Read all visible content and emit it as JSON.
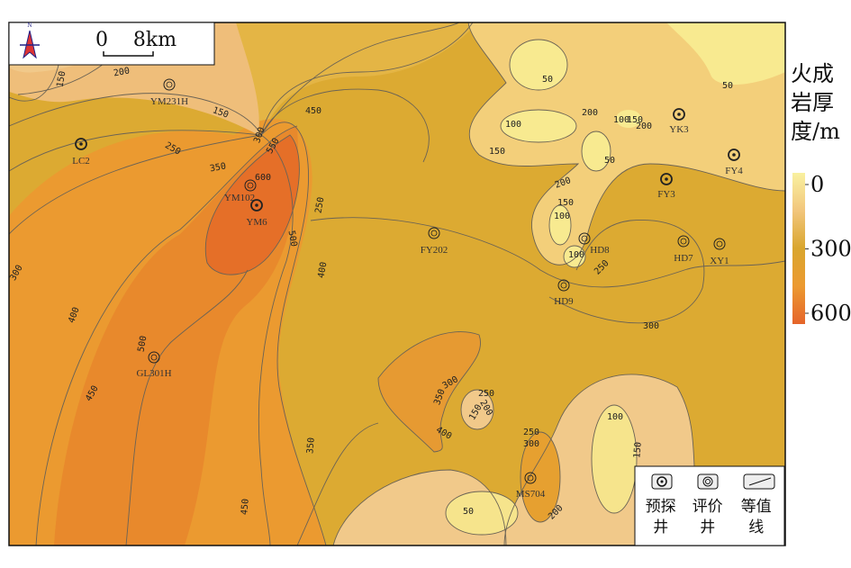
{
  "map": {
    "north_label": "N",
    "scale_bar": {
      "start": 0,
      "end": "8km"
    },
    "wells": [
      "LC2",
      "YM231H",
      "YM102",
      "YM6",
      "GL301H",
      "FY202",
      "HD8",
      "HD9",
      "HD7",
      "XY1",
      "FY3",
      "FY4",
      "YK3",
      "MS704"
    ],
    "contour_labels": [
      150,
      200,
      150,
      250,
      350,
      300,
      450,
      550,
      600,
      250,
      500,
      400,
      300,
      400,
      500,
      450,
      350,
      450,
      50,
      100,
      200,
      150,
      100,
      150,
      200,
      50,
      50,
      200,
      150,
      100,
      100,
      250,
      300,
      100,
      150,
      250,
      300,
      200,
      50,
      300,
      250,
      350,
      200,
      150,
      400
    ]
  },
  "color_scale": {
    "title": "火成岩厚度/m",
    "ticks": [
      0,
      300,
      600
    ]
  },
  "legend": {
    "items": [
      "预探井",
      "评价井",
      "等值线"
    ]
  }
}
